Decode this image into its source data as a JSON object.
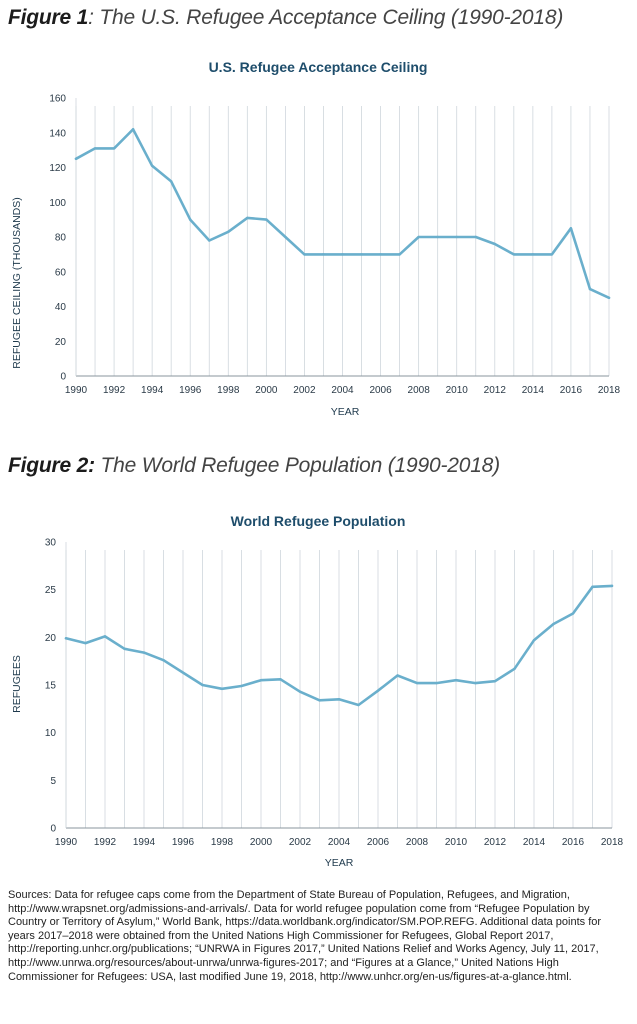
{
  "figures": [
    {
      "lead": "Figure 1",
      "rest": ": The U.S. Refugee Acceptance Ceiling (1990-2018)"
    },
    {
      "lead": "Figure 2:",
      "rest": " The World Refugee Population (1990-2018)"
    }
  ],
  "chart_data": [
    {
      "type": "line",
      "title": "U.S. Refugee Acceptance Ceiling",
      "xlabel": "YEAR",
      "ylabel": "REFUGEE CEILING (THOUSANDS)",
      "x": [
        1990,
        1991,
        1992,
        1993,
        1994,
        1995,
        1996,
        1997,
        1998,
        1999,
        2000,
        2001,
        2002,
        2003,
        2004,
        2005,
        2006,
        2007,
        2008,
        2009,
        2010,
        2011,
        2012,
        2013,
        2014,
        2015,
        2016,
        2017,
        2018
      ],
      "series": [
        {
          "values": [
            125,
            131,
            131,
            142,
            121,
            112,
            90,
            78,
            83,
            91,
            90,
            80,
            70,
            70,
            70,
            70,
            70,
            70,
            80,
            80,
            80,
            80,
            76,
            70,
            70,
            70,
            85,
            50,
            45
          ]
        }
      ],
      "xticks": [
        "1990",
        "1992",
        "1994",
        "1996",
        "1998",
        "2000",
        "2002",
        "2004",
        "2006",
        "2008",
        "2010",
        "2012",
        "2014",
        "2016",
        "2018"
      ],
      "yticks": [
        "0",
        "20",
        "40",
        "60",
        "80",
        "100",
        "120",
        "140",
        "160"
      ],
      "xlim": [
        1990,
        2018
      ],
      "ylim": [
        0,
        160
      ],
      "grid": "vertical",
      "line_color": "#6aafcc"
    },
    {
      "type": "line",
      "title": "World Refugee Population",
      "xlabel": "YEAR",
      "ylabel": "REFUGEES",
      "x": [
        1990,
        1991,
        1992,
        1993,
        1994,
        1995,
        1996,
        1997,
        1998,
        1999,
        2000,
        2001,
        2002,
        2003,
        2004,
        2005,
        2006,
        2007,
        2008,
        2009,
        2010,
        2011,
        2012,
        2013,
        2014,
        2015,
        2016,
        2017,
        2018
      ],
      "series": [
        {
          "values": [
            19.9,
            19.4,
            20.1,
            18.8,
            18.4,
            17.6,
            16.3,
            15.0,
            14.6,
            14.9,
            15.5,
            15.6,
            14.3,
            13.4,
            13.5,
            12.9,
            14.4,
            16.0,
            15.2,
            15.2,
            15.5,
            15.2,
            15.4,
            16.7,
            19.7,
            21.4,
            22.5,
            25.3,
            25.4
          ]
        }
      ],
      "xticks": [
        "1990",
        "1992",
        "1994",
        "1996",
        "1998",
        "2000",
        "2002",
        "2004",
        "2006",
        "2008",
        "2010",
        "2012",
        "2014",
        "2016",
        "2018"
      ],
      "yticks": [
        "0",
        "5",
        "10",
        "15",
        "20",
        "25",
        "30"
      ],
      "xlim": [
        1990,
        2018
      ],
      "ylim": [
        0,
        30
      ],
      "grid": "vertical",
      "line_color": "#6aafcc"
    }
  ],
  "sources": "Sources: Data for refugee caps come from the Department of State Bureau of Population, Refugees, and Migration, http://www.wrapsnet.org/admissions-and-arrivals/. Data for world refugee population come from “Refugee Population by Country or Territory of Asylum,” World Bank, https://data.worldbank.org/indicator/SM.POP.REFG. Additional data points for years 2017–2018 were obtained from the United Nations High Commissioner for Refugees, Global Report 2017, http://reporting.unhcr.org/publications; “UNRWA in Figures 2017,” United Nations Relief and Works Agency, July 11, 2017, http://www.unrwa.org/resources/about-unrwa/unrwa-figures-2017; and “Figures at a Glance,” United Nations High Commissioner for Refugees: USA, last modified June 19, 2018, http://www.unhcr.org/en-us/figures-at-a-glance.html."
}
